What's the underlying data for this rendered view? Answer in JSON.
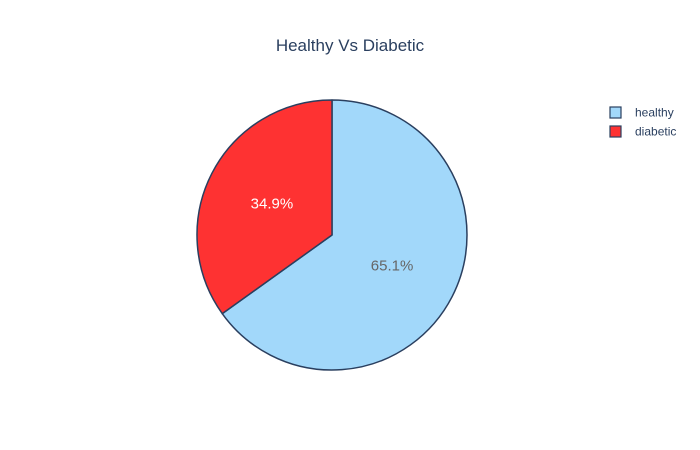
{
  "chart_data": {
    "type": "pie",
    "title": "Healthy Vs Diabetic",
    "labels": [
      "healthy",
      "diabetic"
    ],
    "values": [
      65.1,
      34.9
    ],
    "text_labels": [
      "65.1%",
      "34.9%"
    ],
    "colors": [
      "#a2d8fa",
      "#fe3232"
    ],
    "label_colors": [
      "#666666",
      "#ffffff"
    ],
    "slice_border_color": "#2a3f5f",
    "direction": "clockwise",
    "start_angle_deg": 0,
    "legend": {
      "placement": "top-right",
      "items": [
        "healthy",
        "diabetic"
      ]
    }
  }
}
